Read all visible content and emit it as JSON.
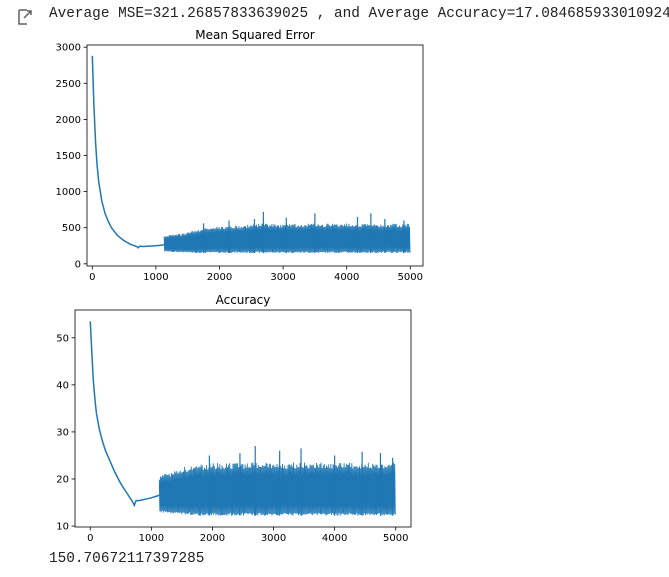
{
  "output": {
    "icon": "output-arrow-icon",
    "stdout_text": "Average MSE=321.26857833639025 , and Average Accuracy=17.084685933010924",
    "result_text": "150.70672117397285"
  },
  "colors": {
    "series": "#1f77b4",
    "text": "#212121",
    "axes": "#000000"
  },
  "chart_data": [
    {
      "type": "line",
      "title": "Mean Squared Error",
      "xlabel": "",
      "ylabel": "",
      "xlim": [
        -83,
        5200
      ],
      "ylim": [
        -30,
        3030
      ],
      "xticks": [
        0,
        1000,
        2000,
        3000,
        4000,
        5000
      ],
      "yticks": [
        0,
        500,
        1000,
        1500,
        2000,
        2500,
        3000
      ],
      "xtick_labels": [
        "0",
        "1000",
        "2000",
        "3000",
        "4000",
        "5000"
      ],
      "ytick_labels": [
        "0",
        "500",
        "1000",
        "1500",
        "2000",
        "2500",
        "3000"
      ],
      "grid": false,
      "series": [
        {
          "x": [
            0,
            25,
            50,
            75,
            100,
            150,
            200,
            250,
            300,
            400,
            500,
            600,
            700,
            720,
            750,
            800,
            900,
            1000,
            1100,
            1130
          ],
          "y": [
            2880,
            2200,
            1700,
            1380,
            1150,
            870,
            700,
            590,
            500,
            390,
            320,
            270,
            240,
            222,
            245,
            240,
            245,
            250,
            260,
            265
          ],
          "band": {
            "x": [
              1130,
              1200,
              1300,
              1400,
              1500,
              1600,
              1700,
              1800,
              1900,
              2000,
              2200,
              2400,
              2600,
              2700,
              3000,
              3500,
              4000,
              4400,
              4500,
              5000
            ],
            "upper": [
              390,
              400,
              410,
              420,
              440,
              460,
              480,
              500,
              510,
              520,
              530,
              540,
              550,
              560,
              550,
              560,
              560,
              560,
              550,
              560
            ],
            "lower": [
              170,
              165,
              160,
              160,
              155,
              150,
              150,
              150,
              150,
              150,
              150,
              150,
              150,
              150,
              150,
              150,
              150,
              150,
              150,
              150
            ]
          },
          "spikes": [
            {
              "x": 1750,
              "y": 560
            },
            {
              "x": 2150,
              "y": 600
            },
            {
              "x": 2550,
              "y": 620
            },
            {
              "x": 2690,
              "y": 720
            },
            {
              "x": 3050,
              "y": 640
            },
            {
              "x": 3500,
              "y": 700
            },
            {
              "x": 4170,
              "y": 650
            },
            {
              "x": 4380,
              "y": 700
            },
            {
              "x": 4600,
              "y": 620
            },
            {
              "x": 4900,
              "y": 600
            }
          ]
        }
      ]
    },
    {
      "type": "line",
      "title": "Accuracy",
      "xlabel": "",
      "ylabel": "",
      "xlim": [
        -250,
        5250
      ],
      "ylim": [
        9.8,
        55.9
      ],
      "xticks": [
        0,
        1000,
        2000,
        3000,
        4000,
        5000
      ],
      "yticks": [
        10,
        20,
        30,
        40,
        50
      ],
      "xtick_labels": [
        "0",
        "1000",
        "2000",
        "3000",
        "4000",
        "5000"
      ],
      "ytick_labels": [
        "10",
        "20",
        "30",
        "40",
        "50"
      ],
      "grid": false,
      "series": [
        {
          "x": [
            0,
            25,
            50,
            75,
            100,
            150,
            200,
            250,
            300,
            400,
            500,
            600,
            700,
            720,
            750,
            800,
            900,
            1000,
            1100,
            1130
          ],
          "y": [
            53.5,
            47,
            41,
            37,
            34,
            30.5,
            28,
            26,
            24.5,
            21.5,
            19,
            17,
            15,
            14.4,
            15.4,
            15.4,
            15.7,
            16,
            16.4,
            16.6
          ],
          "band": {
            "x": [
              1130,
              1200,
              1300,
              1400,
              1500,
              1600,
              1700,
              1800,
              1900,
              2000,
              2200,
              2400,
              2600,
              2700,
              3000,
              3500,
              4000,
              4400,
              4500,
              5000
            ],
            "upper": [
              20.5,
              21,
              21.5,
              22,
              22.5,
              22.8,
              23,
              23.2,
              23.3,
              23.4,
              23.5,
              23.5,
              23.5,
              23.5,
              23.5,
              23.5,
              23.5,
              23.5,
              23.5,
              23.5
            ],
            "lower": [
              13,
              12.8,
              12.7,
              12.6,
              12.5,
              12.4,
              12.3,
              12.2,
              12.2,
              12.2,
              12.2,
              12.2,
              12.2,
              12.2,
              12.2,
              12.2,
              12.2,
              12.2,
              12.2,
              12.2
            ]
          },
          "spikes": [
            {
              "x": 1950,
              "y": 25
            },
            {
              "x": 2450,
              "y": 25.5
            },
            {
              "x": 2700,
              "y": 27
            },
            {
              "x": 3100,
              "y": 26
            },
            {
              "x": 3450,
              "y": 26.5
            },
            {
              "x": 4000,
              "y": 25
            },
            {
              "x": 4450,
              "y": 25.8
            },
            {
              "x": 4750,
              "y": 25.5
            },
            {
              "x": 4950,
              "y": 24.5
            }
          ]
        }
      ]
    }
  ]
}
